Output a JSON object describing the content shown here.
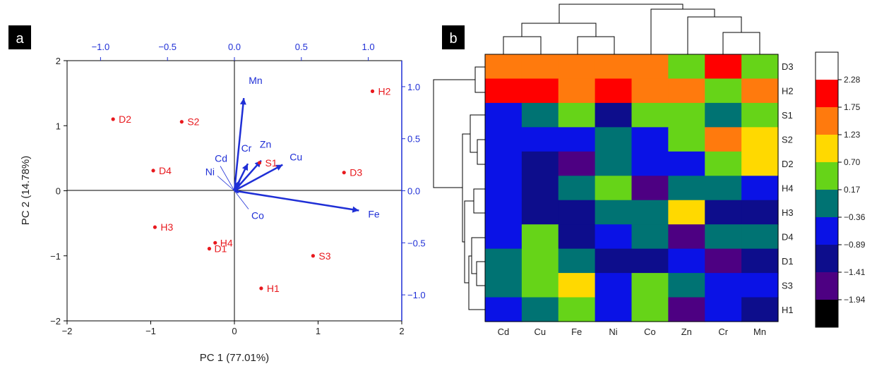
{
  "chart_data": [
    {
      "type": "scatter",
      "panel_label": "a",
      "xlabel": "PC 1 (77.01%)",
      "ylabel": "PC 2 (14.78%)",
      "xlim": [
        -2,
        2
      ],
      "ylim": [
        -2,
        2
      ],
      "xticks": [
        -2,
        -1,
        0,
        1,
        2
      ],
      "yticks": [
        -2,
        -1,
        0,
        1,
        2
      ],
      "xtick_labels": [
        "−2",
        "−1",
        "0",
        "1",
        "2"
      ],
      "ytick_labels": [
        "−2",
        "−1",
        "0",
        "1",
        "2"
      ],
      "loadings_xlim": [
        -1.25,
        1.25
      ],
      "loadings_ylim": [
        -1.25,
        1.25
      ],
      "top_ticks": [
        -1.0,
        -0.5,
        0.0,
        0.5,
        1.0
      ],
      "top_tick_labels": [
        "−1.0",
        "−0.5",
        "0.0",
        "0.5",
        "1.0"
      ],
      "right_ticks": [
        -1.0,
        -0.5,
        0.0,
        0.5,
        1.0
      ],
      "right_tick_labels": [
        "−1.0",
        "−0.5",
        "0.0",
        "0.5",
        "1.0"
      ],
      "points": [
        {
          "label": "D2",
          "x": -1.45,
          "y": 1.1
        },
        {
          "label": "S2",
          "x": -0.63,
          "y": 1.06
        },
        {
          "label": "H2",
          "x": 1.65,
          "y": 1.53
        },
        {
          "label": "D4",
          "x": -0.97,
          "y": 0.31
        },
        {
          "label": "S1",
          "x": 0.3,
          "y": 0.43
        },
        {
          "label": "D3",
          "x": 1.31,
          "y": 0.28
        },
        {
          "label": "H3",
          "x": -0.95,
          "y": -0.56
        },
        {
          "label": "H4",
          "x": -0.23,
          "y": -0.8
        },
        {
          "label": "D1",
          "x": -0.3,
          "y": -0.89
        },
        {
          "label": "S3",
          "x": 0.94,
          "y": -1.0
        },
        {
          "label": "H1",
          "x": 0.32,
          "y": -1.5
        }
      ],
      "loadings": [
        {
          "label": "Mn",
          "x": 0.07,
          "y": 0.89
        },
        {
          "label": "Cr",
          "x": 0.1,
          "y": 0.26
        },
        {
          "label": "Zn",
          "x": 0.2,
          "y": 0.29
        },
        {
          "label": "Cu",
          "x": 0.36,
          "y": 0.25
        },
        {
          "label": "Cd",
          "x": 0.04,
          "y": 0.1
        },
        {
          "label": "Ni",
          "x": 0.02,
          "y": 0.06
        },
        {
          "label": "Co",
          "x": 0.03,
          "y": -0.02
        },
        {
          "label": "Fe",
          "x": 0.93,
          "y": -0.19
        }
      ],
      "colors": {
        "scores": "#e8191e",
        "loadings": "#1f2fd6",
        "axis": "#1f2fd6",
        "frame": "#000000"
      }
    },
    {
      "type": "heatmap",
      "panel_label": "b",
      "columns": [
        "Cd",
        "Cu",
        "Fe",
        "Ni",
        "Co",
        "Zn",
        "Cr",
        "Mn"
      ],
      "rows": [
        "D3",
        "H2",
        "S1",
        "S2",
        "D2",
        "H4",
        "H3",
        "D4",
        "D1",
        "S3",
        "H1"
      ],
      "color_levels": [
        -1.94,
        -1.41,
        -0.89,
        -0.36,
        0.17,
        0.7,
        1.23,
        1.75,
        2.28
      ],
      "colorbar_labels": [
        "2.28",
        "1.75",
        "1.23",
        "0.70",
        "0.17",
        "−0.36",
        "−0.89",
        "−1.41",
        "−1.94"
      ],
      "colorbar_colors": [
        "#ffffff",
        "#ff0000",
        "#ff7a0d",
        "#ffd900",
        "#66d418",
        "#007373",
        "#0a12e6",
        "#0d0d8c",
        "#4d0082",
        "#000000"
      ],
      "bin_colors": [
        "#000000",
        "#4d0082",
        "#0d0d8c",
        "#0a12e6",
        "#007373",
        "#66d418",
        "#ffd900",
        "#ff7a0d",
        "#ff0000",
        "#ffffff"
      ],
      "cell_bins": [
        [
          7,
          7,
          7,
          7,
          7,
          5,
          8,
          5
        ],
        [
          8,
          8,
          7,
          8,
          7,
          7,
          5,
          7
        ],
        [
          3,
          4,
          5,
          2,
          5,
          5,
          4,
          5
        ],
        [
          3,
          3,
          3,
          4,
          3,
          5,
          7,
          6
        ],
        [
          3,
          2,
          1,
          4,
          3,
          3,
          5,
          6
        ],
        [
          3,
          2,
          4,
          5,
          1,
          4,
          4,
          3
        ],
        [
          3,
          2,
          2,
          4,
          4,
          6,
          2,
          2
        ],
        [
          3,
          5,
          2,
          3,
          4,
          1,
          4,
          4
        ],
        [
          4,
          5,
          4,
          2,
          2,
          3,
          1,
          2
        ],
        [
          4,
          5,
          6,
          3,
          5,
          4,
          3,
          3
        ],
        [
          3,
          4,
          5,
          3,
          5,
          1,
          3,
          2
        ]
      ]
    }
  ]
}
